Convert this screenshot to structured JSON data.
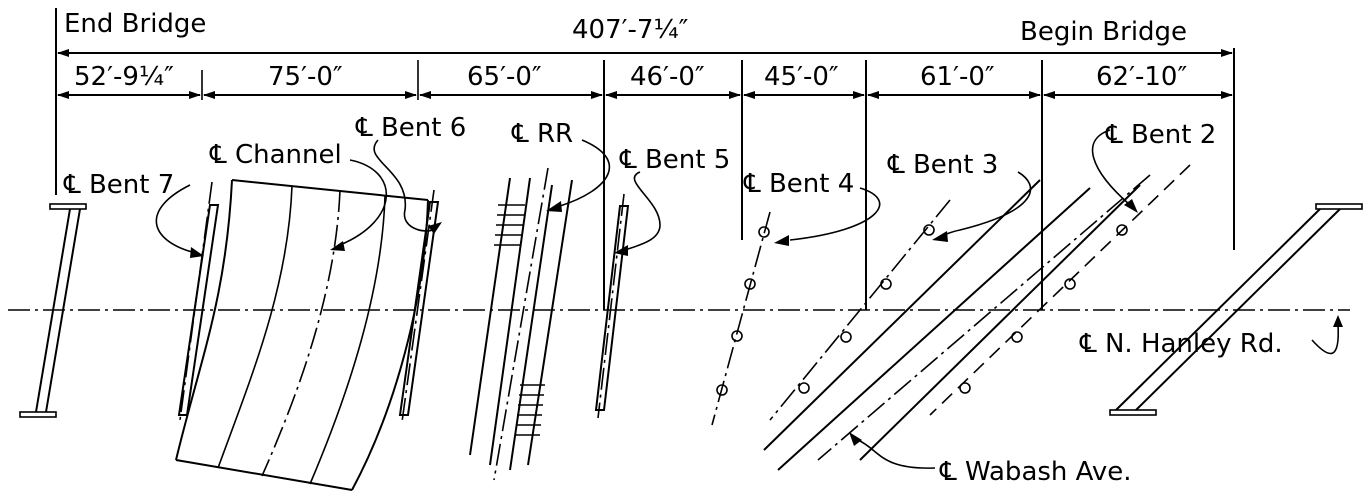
{
  "labels": {
    "end_bridge": "End Bridge",
    "begin_bridge": "Begin Bridge",
    "overall": "407′-7¼″",
    "channel": "℄ Channel",
    "bent6": "℄ Bent 6",
    "rr": "℄ RR",
    "bent5": "℄ Bent 5",
    "bent4": "℄ Bent 4",
    "bent3": "℄ Bent 3",
    "bent2": "℄ Bent 2",
    "bent7": "℄ Bent 7",
    "hanley": "℄ N. Hanley Rd.",
    "wabash": "℄ Wabash Ave."
  },
  "spans": [
    "52′-9¼″",
    "75′-0″",
    "65′-0″",
    "46′-0″",
    "45′-0″",
    "61′-0″",
    "62′-10″"
  ]
}
